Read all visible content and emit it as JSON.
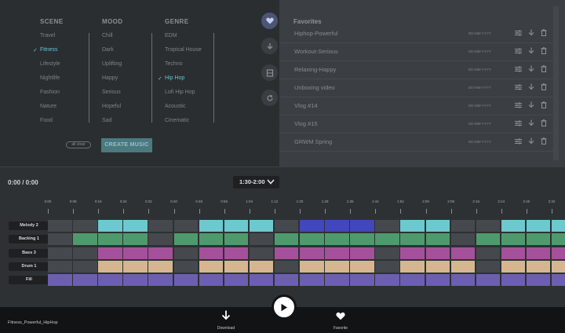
{
  "filters": {
    "scene": {
      "header": "SCENE",
      "items": [
        "Travel",
        "Fitness",
        "Lifestyle",
        "Nightlife",
        "Fashion",
        "Nature",
        "Food"
      ]
    },
    "mood": {
      "header": "MOOD",
      "items": [
        "Chill",
        "Dark",
        "Uplifting",
        "Happy",
        "Serious",
        "Hopeful",
        "Sad"
      ]
    },
    "genre": {
      "header": "GENRE",
      "items": [
        "EDM",
        "Tropical House",
        "Techno",
        "Hip Hop",
        "Lofi Hip Hop",
        "Acoustic",
        "Cinematic"
      ]
    },
    "selected": {
      "scene": "Fitness",
      "genre": "Hip Hop"
    },
    "all_clear_label": "all clear",
    "create_label": "CREATE MUSIC"
  },
  "rail": {
    "icons": [
      "heart-icon",
      "download-icon",
      "film-icon",
      "refresh-icon"
    ],
    "active": "heart-icon"
  },
  "favorites": {
    "title": "Favorites",
    "items": [
      {
        "name": "Hiphop-Powerful",
        "date": "DD-MM-YYYY"
      },
      {
        "name": "Workout-Serious",
        "date": "DD-MM-YYYY"
      },
      {
        "name": "Relaxing-Happy",
        "date": "DD-MM-YYYY"
      },
      {
        "name": "Unboxing video",
        "date": "DD-MM-YYYY"
      },
      {
        "name": "Vlog #14",
        "date": "DD-MM-YYYY"
      },
      {
        "name": "Vlog #15",
        "date": "DD-MM-YYYY"
      },
      {
        "name": "GRWM Spring",
        "date": "DD-MM-YYYY"
      }
    ]
  },
  "timeline": {
    "time_display": "0:00 / 0:00",
    "range": "1:30-2:00",
    "ticks": [
      "0:00",
      "0:08",
      "0:16",
      "0:24",
      "0:32",
      "0:40",
      "0:48",
      "0:56",
      "1:04",
      "1:12",
      "1:20",
      "1:28",
      "1:36",
      "1:44",
      "1:52",
      "2:00",
      "2:08",
      "2:16",
      "2:24",
      "2:40",
      "2:32"
    ],
    "tracks": [
      {
        "name": "Melody 2",
        "color": "#6cc9cf",
        "pattern": [
          0,
          0,
          1,
          1,
          0,
          0,
          1,
          1,
          1,
          0,
          2,
          2,
          2,
          0,
          1,
          1,
          0,
          0,
          1,
          1,
          1
        ]
      },
      {
        "name": "Backing 1",
        "color": "#4f9a6d",
        "pattern": [
          0,
          1,
          1,
          1,
          0,
          1,
          1,
          1,
          0,
          1,
          1,
          1,
          1,
          1,
          1,
          1,
          0,
          1,
          1,
          1,
          1
        ]
      },
      {
        "name": "Bass 3",
        "color": "#a5509a",
        "pattern": [
          0,
          0,
          1,
          1,
          1,
          0,
          1,
          1,
          0,
          1,
          1,
          1,
          1,
          0,
          1,
          1,
          1,
          0,
          1,
          1,
          1
        ]
      },
      {
        "name": "Drum 1",
        "color": "#d6b690",
        "pattern": [
          0,
          0,
          1,
          1,
          1,
          0,
          1,
          1,
          1,
          0,
          1,
          1,
          1,
          0,
          1,
          1,
          1,
          0,
          1,
          1,
          1
        ]
      },
      {
        "name": "Fill",
        "color": "#6c5fb0",
        "pattern": [
          1,
          1,
          1,
          1,
          1,
          1,
          1,
          1,
          1,
          1,
          1,
          1,
          1,
          1,
          1,
          1,
          1,
          1,
          1,
          1,
          1
        ]
      }
    ],
    "melody_alt_color": "#4246bf",
    "empty_color": "#45484c"
  },
  "player": {
    "track_name": "Fitness_Powerful_HipHop",
    "download_label": "Download",
    "favorite_label": "Favorite"
  }
}
